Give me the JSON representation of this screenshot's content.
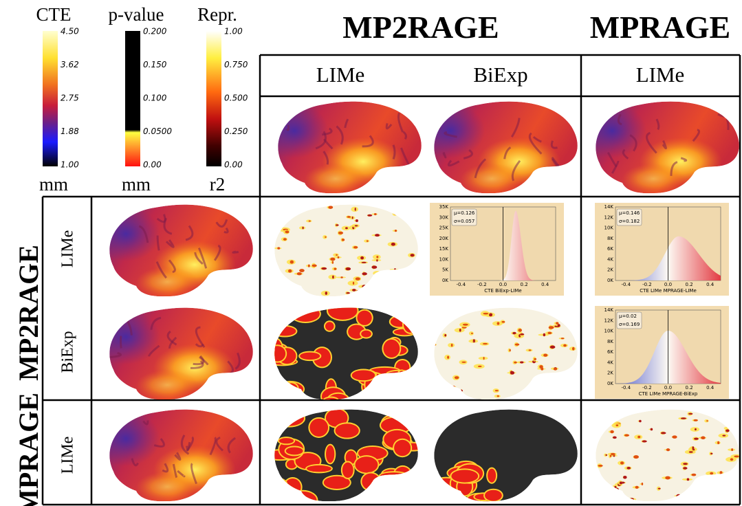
{
  "header": {
    "titles": [
      "MP2RAGE",
      "MPRAGE"
    ]
  },
  "legend": {
    "colorbars": [
      {
        "title": "CTE",
        "ticks": [
          "4.50",
          "3.62",
          "2.75",
          "1.88",
          "1.00"
        ],
        "unit": "mm"
      },
      {
        "title": "p-value",
        "ticks": [
          "0.200",
          "0.150",
          "0.100",
          "0.0500",
          "0.00"
        ],
        "unit": "mm"
      },
      {
        "title": "Repr.",
        "ticks": [
          "1.00",
          "0.750",
          "0.500",
          "0.250",
          "0.00"
        ],
        "unit": "r2"
      }
    ]
  },
  "table": {
    "column_headers": [
      "LIMe",
      "BiExp",
      "LIMe"
    ],
    "row_groups": [
      {
        "label": "MP2RAGE",
        "rows": [
          "LIMe",
          "BiExp"
        ]
      },
      {
        "label": "MPRAGE",
        "rows": [
          "LIMe"
        ]
      }
    ]
  },
  "histograms": [
    {
      "mu": "μ=0.126",
      "sigma": "σ=0.057",
      "xlabel": "CTE BiExp-LIMe",
      "yticks": [
        "0K",
        "5K",
        "10K",
        "15K",
        "20K",
        "25K",
        "30K",
        "35K"
      ],
      "xticks": [
        "-0.4",
        "-0.2",
        "0.0",
        "0.2",
        "0.4"
      ]
    },
    {
      "mu": "μ=0.146",
      "sigma": "σ=0.182",
      "xlabel": "CTE LIMe MPRAGE-LIMe",
      "yticks": [
        "0K",
        "2K",
        "4K",
        "6K",
        "8K",
        "10K",
        "12K",
        "14K"
      ],
      "xticks": [
        "-0.4",
        "-0.2",
        "0.0",
        "0.2",
        "0.4"
      ]
    },
    {
      "mu": "μ=0.02",
      "sigma": "σ=0.169",
      "xlabel": "CTE LIMe MPRAGE-BiExp",
      "yticks": [
        "0K",
        "2K",
        "4K",
        "6K",
        "8K",
        "10K",
        "12K",
        "14K"
      ],
      "xticks": [
        "-0.4",
        "-0.2",
        "0.0",
        "0.2",
        "0.4"
      ]
    }
  ]
}
